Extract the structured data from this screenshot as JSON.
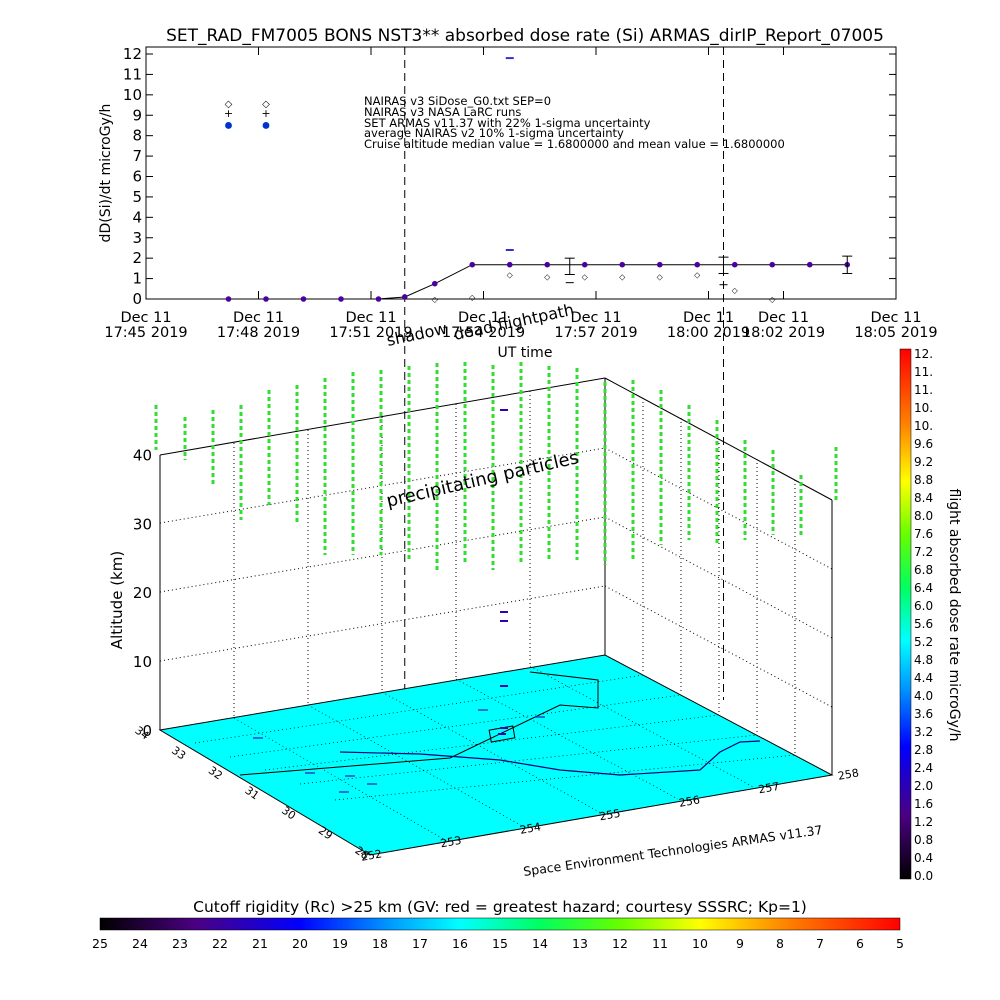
{
  "chart_data": [
    {
      "type": "line",
      "title": "SET_RAD_FM7005  BONS NST3** absorbed dose rate (Si) ARMAS_dirIP_Report_07005",
      "ylabel": "dD(Si)/dt microGy/h",
      "xlabel": "UT time",
      "ylim": [
        0,
        12
      ],
      "yticks": [
        "0",
        "1",
        "2",
        "3",
        "4",
        "5",
        "6",
        "7",
        "8",
        "9",
        "10",
        "11",
        "12"
      ],
      "xlim_minutes": [
        0,
        20
      ],
      "xticks": [
        {
          "t": 0,
          "line1": "Dec 11",
          "line2": "17:45  2019"
        },
        {
          "t": 3,
          "line1": "Dec 11",
          "line2": "17:48  2019"
        },
        {
          "t": 6,
          "line1": "Dec 11",
          "line2": "17:51  2019"
        },
        {
          "t": 9,
          "line1": "Dec 11",
          "line2": "17:54  2019"
        },
        {
          "t": 12,
          "line1": "Dec 11",
          "line2": "17:57  2019"
        },
        {
          "t": 15,
          "line1": "Dec 11",
          "line2": "18:00  2019"
        },
        {
          "t": 17,
          "line1": "Dec 11",
          "line2": "18:02  2019"
        },
        {
          "t": 20,
          "line1": "Dec 11",
          "line2": "18:05  2019"
        }
      ],
      "legend": [
        "NAIRAS v3 SiDose_G0.txt SEP=0",
        "NAIRAS v3 NASA LaRC runs",
        "SET ARMAS v11.37 with 22% 1-sigma uncertainty",
        "average NAIRAS v2 10% 1-sigma uncertainty",
        "Cruise altitude median value = 1.6800000 and mean value = 1.6800000"
      ],
      "legend_symbols": {
        "diamond": 9.6,
        "plus": 9.1,
        "blue_dot": 8.5
      },
      "legend_symbol_minutes": [
        2.2,
        3.2
      ],
      "annotations": [
        "shadow",
        "dead flightpath"
      ],
      "dashed_lines_minutes": [
        6.9,
        15.4
      ],
      "series": [
        {
          "name": "SET ARMAS v11.37",
          "x": [
            2.2,
            3.2,
            4.2,
            5.2,
            6.2,
            6.9,
            7.7,
            8.7,
            9.7,
            10.7,
            11.7,
            12.7,
            13.7,
            14.7,
            15.7,
            16.7,
            17.7,
            18.7
          ],
          "y": [
            0,
            0,
            0,
            0,
            0,
            0.1,
            0.75,
            1.68,
            1.68,
            1.68,
            1.68,
            1.68,
            1.68,
            1.68,
            1.68,
            1.68,
            1.68,
            1.68
          ]
        },
        {
          "name": "NAIRAS v3 SiDose_G0.txt SEP=0",
          "x": [
            7.7,
            8.7,
            9.7,
            10.7,
            11.7,
            12.7,
            13.7,
            14.7,
            15.7,
            16.7
          ],
          "y": [
            0,
            0.1,
            1.2,
            1.1,
            1.1,
            1.1,
            1.1,
            1.2,
            0.45,
            0
          ]
        },
        {
          "name": "NAIRAS v3 NASA LaRC runs",
          "x": [
            11.3,
            15.4
          ],
          "y": [
            0.8,
            0.7
          ]
        }
      ],
      "error_bars": [
        {
          "x": 11.3,
          "lo": 1.2,
          "hi": 2.0
        },
        {
          "x": 15.4,
          "lo": 1.25,
          "hi": 2.05
        },
        {
          "x": 18.7,
          "lo": 1.25,
          "hi": 2.1
        }
      ],
      "outlier_marks": [
        {
          "x": 9.7,
          "y": 11.8
        },
        {
          "x": 9.7,
          "y": 2.4
        }
      ]
    },
    {
      "type": "scatter",
      "title": "",
      "zlabel": "Altitude (km)",
      "zlim": [
        0,
        45
      ],
      "zticks": [
        "0",
        "10",
        "20",
        "30",
        "40"
      ],
      "lat_ticks": [
        "28",
        "29",
        "30",
        "31",
        "32",
        "33",
        "34"
      ],
      "lon_ticks": [
        "252",
        "253",
        "254",
        "255",
        "256",
        "257",
        "258"
      ],
      "annotations": [
        "precipitating particles"
      ],
      "credit": "Space Environment Technologies ARMAS v11.37",
      "surface_color": "#00ffff"
    },
    {
      "type": "heatmap",
      "title": "flight absorbed dose rate microGy/h",
      "colorbar_orientation": "vertical",
      "range": [
        0,
        12
      ],
      "labels": [
        "0.0",
        "0.4",
        "0.8",
        "1.2",
        "1.6",
        "2.0",
        "2.4",
        "2.8",
        "3.2",
        "3.6",
        "4.0",
        "4.4",
        "4.8",
        "5.2",
        "5.6",
        "6.0",
        "6.4",
        "6.8",
        "7.2",
        "7.6",
        "8.0",
        "8.4",
        "8.8",
        "9.2",
        "9.6",
        "10.",
        "10.",
        "11.",
        "11.",
        "12."
      ]
    },
    {
      "type": "heatmap",
      "title": "Cutoff rigidity (Rc) >25 km (GV: red = greatest hazard; courtesy SSSRC; Kp=1)",
      "colorbar_orientation": "horizontal",
      "range": [
        25,
        5
      ],
      "labels": [
        "25",
        "24",
        "23",
        "22",
        "21",
        "20",
        "19",
        "18",
        "17",
        "16",
        "15",
        "14",
        "13",
        "12",
        "11",
        "10",
        "9",
        "8",
        "7",
        "6",
        "5"
      ]
    }
  ]
}
